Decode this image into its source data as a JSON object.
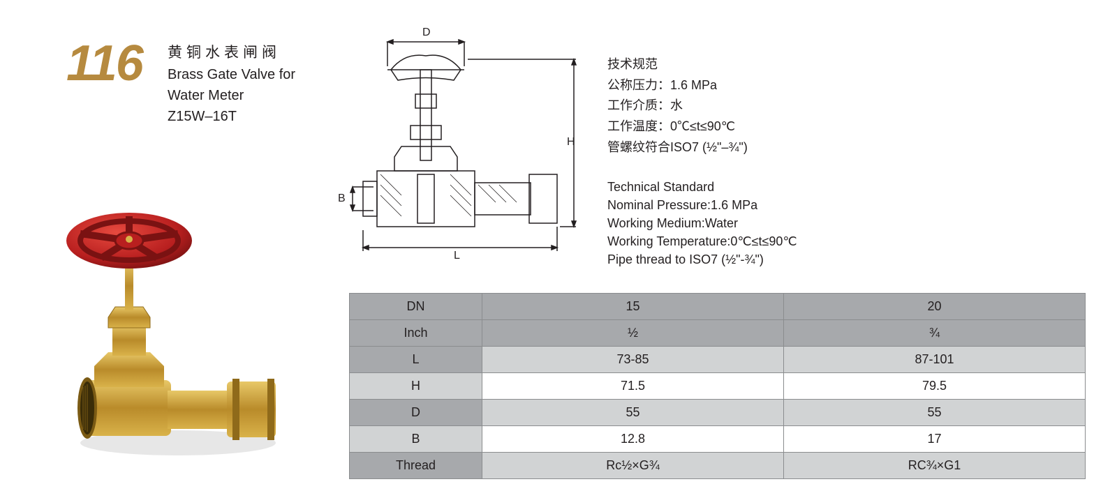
{
  "page_number": "116",
  "title": {
    "cn": "黄铜水表闸阀",
    "en_line1": "Brass Gate Valve for",
    "en_line2": "Water Meter",
    "model": "Z15W–16T"
  },
  "specs_cn": {
    "heading": "技术规范",
    "pressure": "公称压力：1.6 MPa",
    "medium": "工作介质：水",
    "temperature": "工作温度：0℃≤t≤90℃",
    "thread": "管螺纹符合ISO7 (½\"–¾\")"
  },
  "specs_en": {
    "heading": "Technical Standard",
    "pressure": "Nominal Pressure:1.6 MPa",
    "medium": "Working Medium:Water",
    "temperature": "Working Temperature:0℃≤t≤90℃",
    "thread": "Pipe thread to ISO7 (½\"-¾\")"
  },
  "diagram_labels": {
    "D": "D",
    "H": "H",
    "B": "B",
    "L": "L"
  },
  "table": {
    "rows": [
      {
        "label": "DN",
        "c1": "15",
        "c2": "20",
        "style": "dark"
      },
      {
        "label": "Inch",
        "c1": "½",
        "c2": "¾",
        "style": "dark"
      },
      {
        "label": "L",
        "c1": "73-85",
        "c2": "87-101",
        "style": "light"
      },
      {
        "label": "H",
        "c1": "71.5",
        "c2": "79.5",
        "style": "white"
      },
      {
        "label": "D",
        "c1": "55",
        "c2": "55",
        "style": "light"
      },
      {
        "label": "B",
        "c1": "12.8",
        "c2": "17",
        "style": "white"
      },
      {
        "label": "Thread",
        "c1": "Rc½×G¾",
        "c2": "RC¾×G1",
        "style": "light"
      }
    ]
  },
  "colors": {
    "page_number": "#b68a3f",
    "handwheel": "#c1272d",
    "brass_light": "#d9b24a",
    "brass_dark": "#a27b22",
    "table_dark": "#a7a9ac",
    "table_light": "#d1d3d4",
    "border": "#8a8c8e",
    "diagram_stroke": "#231f20"
  },
  "photo": {
    "type": "product-photo",
    "description": "Brass gate valve with red handwheel, threaded inlet and union nut outlet"
  },
  "diagram": {
    "type": "engineering-drawing",
    "description": "Cross-section of gate valve with handwheel, stem, body, and extension union; dimension callouts D (handwheel dia), H (height), B (bore), L (length)"
  }
}
